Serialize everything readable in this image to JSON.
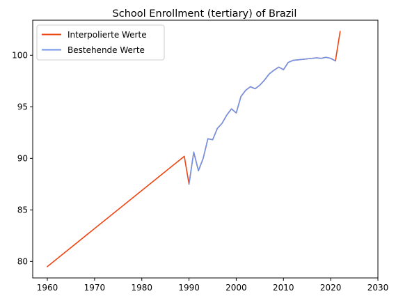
{
  "chart_data": {
    "type": "line",
    "title": "School Enrollment (tertiary) of Brazil",
    "xlabel": "",
    "ylabel": "",
    "xlim": [
      1956.9,
      2030
    ],
    "ylim": [
      78.4,
      103.4
    ],
    "xticks": [
      1960,
      1970,
      1980,
      1990,
      2000,
      2010,
      2020,
      2030
    ],
    "yticks": [
      80,
      85,
      90,
      95,
      100
    ],
    "grid": false,
    "legend_position": "top-left",
    "series": [
      {
        "name": "Interpolierte Werte",
        "color": "#ee4411",
        "x": [
          1960,
          1989,
          1990,
          1991,
          1992,
          1993,
          1994,
          1995,
          1996,
          1997,
          1998,
          1999,
          2000,
          2001,
          2002,
          2003,
          2004,
          2005,
          2006,
          2007,
          2008,
          2009,
          2010,
          2011,
          2012,
          2013,
          2014,
          2015,
          2016,
          2017,
          2018,
          2019,
          2020,
          2021,
          2022
        ],
        "values": [
          79.5,
          90.2,
          87.5,
          90.6,
          88.8,
          90.0,
          91.9,
          91.8,
          92.9,
          93.4,
          94.2,
          94.8,
          94.4,
          96.0,
          96.6,
          96.95,
          96.75,
          97.1,
          97.6,
          98.2,
          98.55,
          98.85,
          98.6,
          99.3,
          99.5,
          99.55,
          99.6,
          99.65,
          99.7,
          99.75,
          99.7,
          99.8,
          99.7,
          99.45,
          102.3
        ]
      },
      {
        "name": "Bestehende Werte",
        "color": "#6f94e8",
        "x": [
          1990,
          1991,
          1992,
          1993,
          1994,
          1995,
          1996,
          1997,
          1998,
          1999,
          2000,
          2001,
          2002,
          2003,
          2004,
          2005,
          2006,
          2007,
          2008,
          2009,
          2010,
          2011,
          2012,
          2013,
          2014,
          2015,
          2016,
          2017,
          2018,
          2019,
          2020,
          2021
        ],
        "values": [
          87.5,
          90.6,
          88.8,
          90.0,
          91.9,
          91.8,
          92.9,
          93.4,
          94.2,
          94.8,
          94.4,
          96.0,
          96.6,
          96.95,
          96.75,
          97.1,
          97.6,
          98.2,
          98.55,
          98.85,
          98.6,
          99.3,
          99.5,
          99.55,
          99.6,
          99.65,
          99.7,
          99.75,
          99.7,
          99.8,
          99.7,
          99.45
        ]
      }
    ]
  }
}
